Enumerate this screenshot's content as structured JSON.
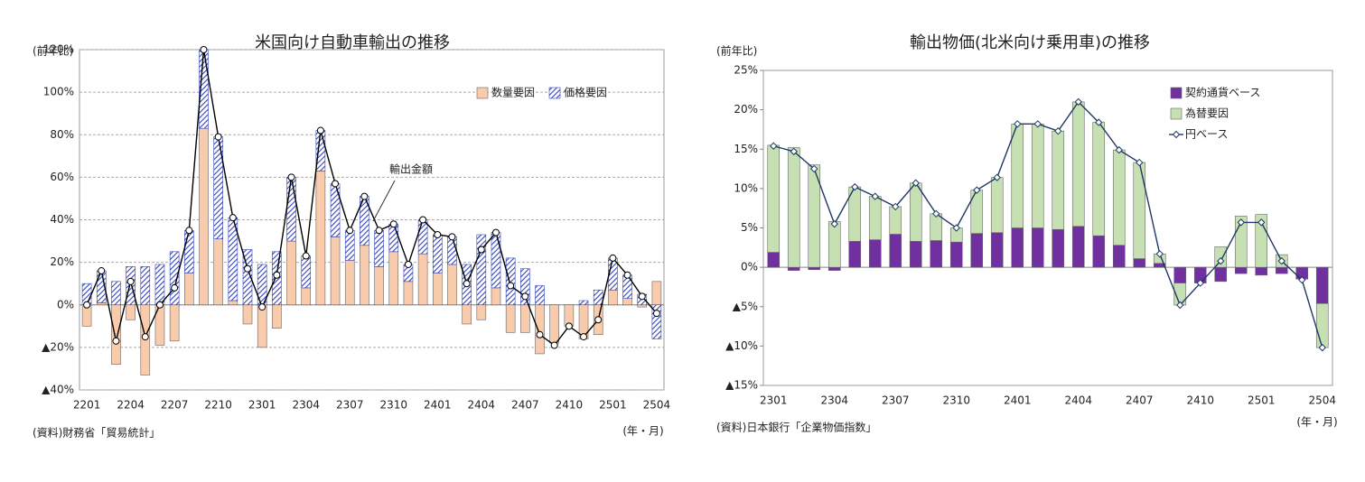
{
  "chart_data": [
    {
      "type": "bar",
      "title": "米国向け自動車輸出の推移",
      "y_label": "(前年比)",
      "x_label": "(年・月)",
      "source": "(資料)財務省「貿易統計」",
      "annotation": "輸出金額",
      "categories": [
        "2201",
        null,
        null,
        "2204",
        null,
        null,
        "2207",
        null,
        null,
        "2210",
        null,
        null,
        "2301",
        null,
        null,
        "2304",
        null,
        null,
        "2307",
        null,
        null,
        "2310",
        null,
        null,
        "2401",
        null,
        null,
        "2404",
        null,
        null,
        "2407",
        null,
        null,
        "2410",
        null,
        null,
        "2501",
        null,
        null,
        "2504"
      ],
      "ylim": [
        -40,
        120
      ],
      "yticks": [
        {
          "value": -40,
          "label": "▲40%"
        },
        {
          "value": -20,
          "label": "▲20%"
        },
        {
          "value": 0,
          "label": "0%"
        },
        {
          "value": 20,
          "label": "20%"
        },
        {
          "value": 40,
          "label": "40%"
        },
        {
          "value": 60,
          "label": "60%"
        },
        {
          "value": 80,
          "label": "80%"
        },
        {
          "value": 100,
          "label": "100%"
        },
        {
          "value": 120,
          "label": "120%"
        }
      ],
      "grid": true,
      "legend": "upper right",
      "series": [
        {
          "name": "数量要因",
          "type": "bar",
          "color": "#f8cbad",
          "values": [
            -10,
            1,
            -28,
            -7,
            -33,
            -19,
            -17,
            15,
            83,
            31,
            2,
            -9,
            -20,
            -11,
            30,
            8,
            63,
            32,
            21,
            28,
            18,
            25,
            11,
            24,
            15,
            19,
            -9,
            -7,
            8,
            -13,
            -13,
            -23,
            -18,
            -10,
            -16,
            -14,
            7,
            3,
            -1,
            11
          ]
        },
        {
          "name": "価格要因",
          "type": "bar",
          "color": "#3344bb",
          "pattern": "hatch",
          "values": [
            10,
            15,
            11,
            18,
            18,
            19,
            25,
            20,
            37,
            48,
            39,
            26,
            19,
            25,
            30,
            15,
            19,
            25,
            14,
            23,
            17,
            13,
            8,
            16,
            18,
            13,
            19,
            33,
            26,
            22,
            17,
            9,
            0,
            0,
            2,
            7,
            15,
            11,
            5,
            -16
          ]
        },
        {
          "name": "輸出金額",
          "type": "line",
          "color": "#000000",
          "marker": "circle",
          "values": [
            0,
            16,
            -17,
            11,
            -15,
            0,
            8,
            35,
            120,
            79,
            41,
            17,
            -1,
            14,
            60,
            23,
            82,
            57,
            35,
            51,
            35,
            38,
            19,
            40,
            33,
            32,
            10,
            26,
            34,
            9,
            4,
            -14,
            -19,
            -10,
            -15,
            -7,
            22,
            14,
            4,
            -4
          ]
        }
      ]
    },
    {
      "type": "bar",
      "title": "輸出物価(北米向け乗用車)の推移",
      "y_label": "(前年比)",
      "x_label": "(年・月)",
      "source": "(資料)日本銀行「企業物価指数」",
      "categories": [
        "2301",
        null,
        null,
        "2304",
        null,
        null,
        "2307",
        null,
        null,
        "2310",
        null,
        null,
        "2401",
        null,
        null,
        "2404",
        null,
        null,
        "2407",
        null,
        null,
        "2410",
        null,
        null,
        "2501",
        null,
        null,
        "2504"
      ],
      "ylim": [
        -15,
        25
      ],
      "yticks": [
        {
          "value": -15,
          "label": "▲15%"
        },
        {
          "value": -10,
          "label": "▲10%"
        },
        {
          "value": -5,
          "label": "▲5%"
        },
        {
          "value": 0,
          "label": "0%"
        },
        {
          "value": 5,
          "label": "5%"
        },
        {
          "value": 10,
          "label": "10%"
        },
        {
          "value": 15,
          "label": "15%"
        },
        {
          "value": 20,
          "label": "20%"
        },
        {
          "value": 25,
          "label": "25%"
        }
      ],
      "grid": false,
      "legend": "upper right",
      "series": [
        {
          "name": "契約通貨ベース",
          "type": "bar",
          "color": "#7030a0",
          "values": [
            1.9,
            -0.4,
            -0.3,
            -0.4,
            3.3,
            3.5,
            4.2,
            3.3,
            3.4,
            3.2,
            4.3,
            4.4,
            5.0,
            5.0,
            4.8,
            5.2,
            4.0,
            2.8,
            1.1,
            0.5,
            -2.0,
            -2.0,
            -1.8,
            -0.8,
            -1.0,
            -0.8,
            -1.5,
            -4.6
          ]
        },
        {
          "name": "為替要因",
          "type": "bar",
          "color": "#c6e0b4",
          "values": [
            13.6,
            15.2,
            13.0,
            5.8,
            6.9,
            5.5,
            3.5,
            7.4,
            3.4,
            1.8,
            5.5,
            7.0,
            13.2,
            13.2,
            12.5,
            15.8,
            14.4,
            12.1,
            12.2,
            1.2,
            -2.8,
            0,
            2.6,
            6.5,
            6.7,
            1.6,
            0,
            -5.6
          ]
        },
        {
          "name": "円ベース",
          "type": "line",
          "color": "#1f3864",
          "marker": "diamond",
          "values": [
            15.4,
            14.7,
            12.5,
            5.5,
            10.2,
            9.0,
            7.7,
            10.7,
            6.8,
            5.0,
            9.8,
            11.4,
            18.2,
            18.2,
            17.3,
            21.0,
            18.4,
            14.9,
            13.3,
            1.7,
            -4.8,
            -2.0,
            0.8,
            5.7,
            5.7,
            0.8,
            -1.6,
            -10.2
          ]
        }
      ]
    }
  ]
}
